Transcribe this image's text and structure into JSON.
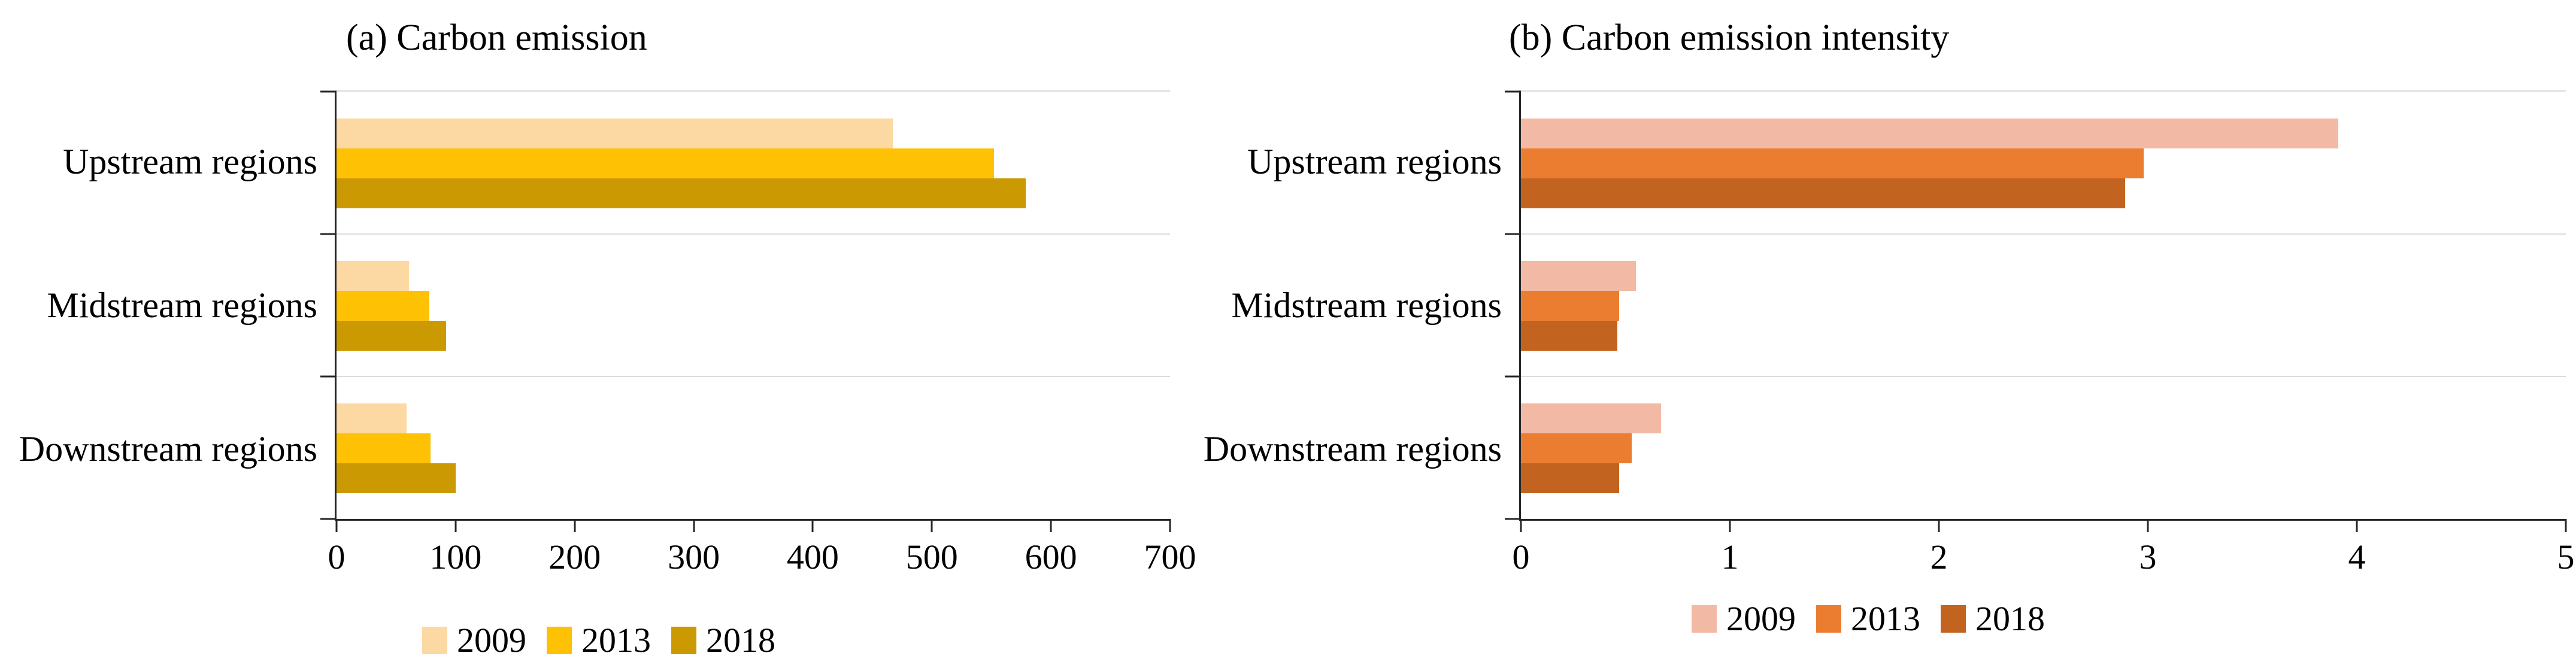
{
  "page": {
    "background": "#FFFFFF"
  },
  "chart_data": [
    {
      "type": "bar",
      "orientation": "horizontal",
      "title": "(a) Carbon emission",
      "categories": [
        "Upstream regions",
        "Midstream regions",
        "Downstream regions"
      ],
      "series": [
        {
          "name": "2009",
          "color": "#FCD9A2",
          "values": [
            467,
            61,
            59
          ]
        },
        {
          "name": "2013",
          "color": "#FEC103",
          "values": [
            552,
            78,
            79
          ]
        },
        {
          "name": "2018",
          "color": "#CB9902",
          "values": [
            579,
            92,
            100
          ]
        }
      ],
      "xlim": [
        0,
        700
      ],
      "x_ticks": [
        0,
        100,
        200,
        300,
        400,
        500,
        600,
        700
      ],
      "legend": {
        "position": "bottom",
        "labels": [
          "2009",
          "2013",
          "2018"
        ]
      },
      "gridlines": "horizontal category dividers",
      "axis_color": "#262626",
      "gridline_color": "#DCDCDC"
    },
    {
      "type": "bar",
      "orientation": "horizontal",
      "title": "(b) Carbon emission intensity",
      "categories": [
        "Upstream regions",
        "Midstream regions",
        "Downstream regions"
      ],
      "series": [
        {
          "name": "2009",
          "color": "#F2B9A4",
          "values": [
            3.91,
            0.55,
            0.67
          ]
        },
        {
          "name": "2013",
          "color": "#EB7D31",
          "values": [
            2.98,
            0.47,
            0.53
          ]
        },
        {
          "name": "2018",
          "color": "#C2631F",
          "values": [
            2.89,
            0.46,
            0.47
          ]
        }
      ],
      "xlim": [
        0,
        5
      ],
      "x_ticks": [
        0,
        1,
        2,
        3,
        4,
        5
      ],
      "legend": {
        "position": "bottom",
        "labels": [
          "2009",
          "2013",
          "2018"
        ]
      },
      "gridlines": "horizontal category dividers",
      "axis_color": "#262626",
      "gridline_color": "#DCDCDC"
    }
  ]
}
